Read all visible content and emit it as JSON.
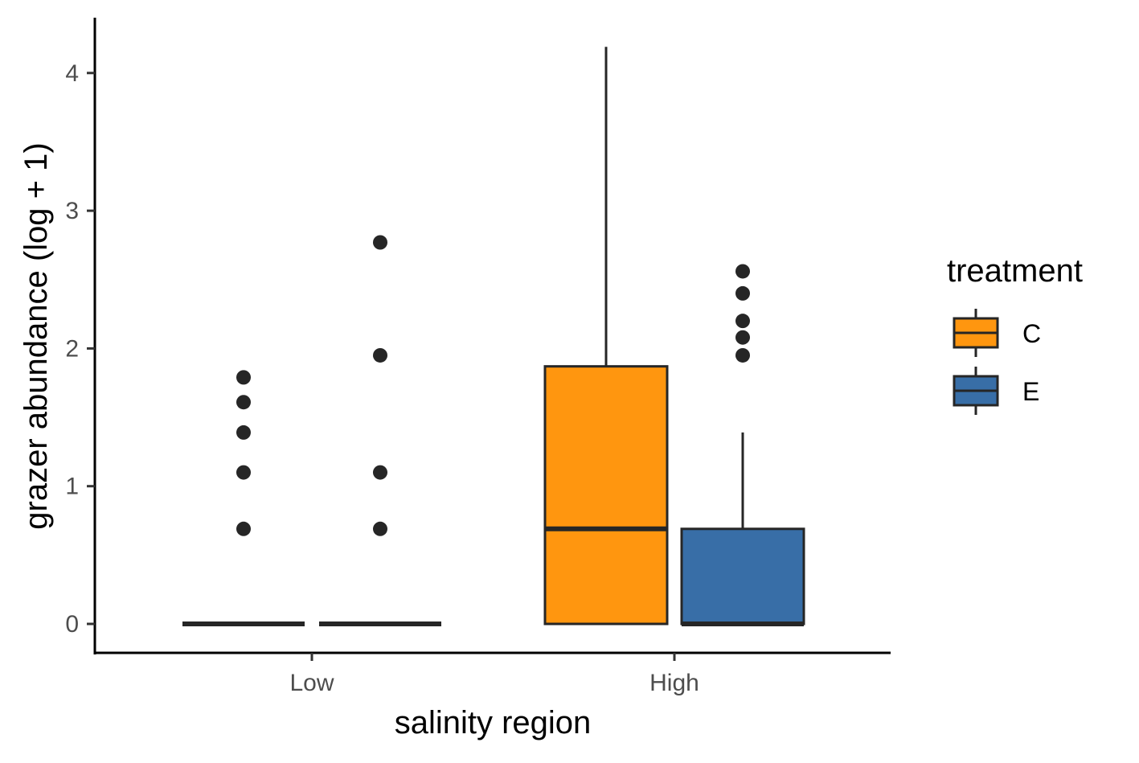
{
  "chart_data": {
    "type": "box",
    "xlabel": "salinity region",
    "ylabel": "grazer abundance (log + 1)",
    "categories": [
      "Low",
      "High"
    ],
    "y_ticks": [
      "0",
      "1",
      "2",
      "3",
      "4"
    ],
    "ylim": [
      -0.2,
      4.4
    ],
    "legend": {
      "title": "treatment",
      "position": "right",
      "entries": [
        {
          "label": "C",
          "color": "#FF960F"
        },
        {
          "label": "E",
          "color": "#386EA7"
        }
      ]
    },
    "series": [
      {
        "name": "C",
        "color": "#FF960F",
        "boxes": [
          {
            "category": "Low",
            "min": 0,
            "q1": 0,
            "median": 0,
            "q3": 0,
            "max": 0,
            "outliers": [
              0.69,
              1.1,
              1.39,
              1.61,
              1.79
            ]
          },
          {
            "category": "High",
            "min": 0,
            "q1": 0,
            "median": 0.69,
            "q3": 1.87,
            "max": 4.19,
            "outliers": []
          }
        ]
      },
      {
        "name": "E",
        "color": "#386EA7",
        "boxes": [
          {
            "category": "Low",
            "min": 0,
            "q1": 0,
            "median": 0,
            "q3": 0,
            "max": 0,
            "outliers": [
              0.69,
              1.1,
              1.95,
              2.77
            ]
          },
          {
            "category": "High",
            "min": 0,
            "q1": 0,
            "median": 0,
            "q3": 0.69,
            "max": 1.39,
            "outliers": [
              1.95,
              2.08,
              2.2,
              2.4,
              2.56
            ]
          }
        ]
      }
    ]
  }
}
